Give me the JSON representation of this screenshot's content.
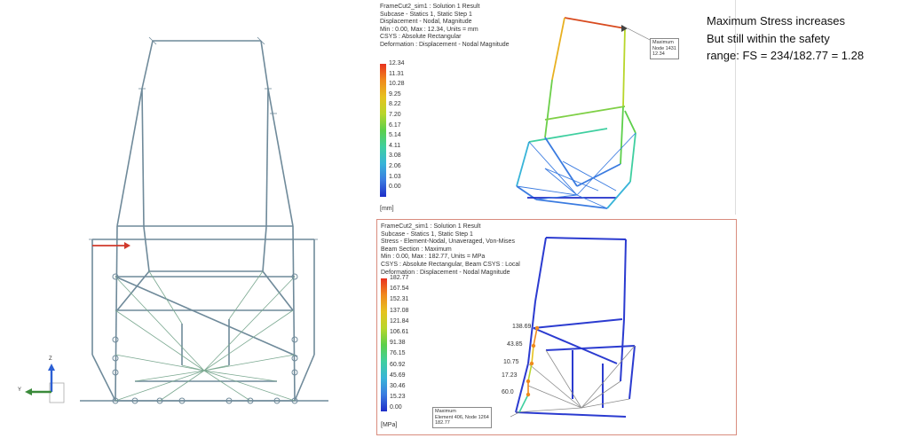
{
  "colors": {
    "frame": "#6f8a9a",
    "mesh_green": "#7aa890",
    "highlight_red": "#d0392b",
    "panel_border": "#d98c7e",
    "triad_z": "#2c5fd4",
    "triad_y": "#3a8a3a"
  },
  "triad": {
    "z_label": "Z",
    "y_label": "Y"
  },
  "top_panel": {
    "header_lines": [
      "FrameCut2_sim1 : Solution 1 Result",
      "Subcase - Statics 1, Static Step 1",
      "Displacement - Nodal, Magnitude",
      "Min : 0.00, Max : 12.34, Units = mm",
      "CSYS : Absolute Rectangular",
      "Deformation : Displacement - Nodal Magnitude"
    ],
    "legend_values": [
      "12.34",
      "11.31",
      "10.28",
      "9.25",
      "8.22",
      "7.20",
      "6.17",
      "5.14",
      "4.11",
      "3.08",
      "2.06",
      "1.03",
      "0.00"
    ],
    "unit": "[mm]",
    "callout": [
      "Maximum",
      "Node 1431",
      "12.34"
    ]
  },
  "bottom_panel": {
    "header_lines": [
      "FrameCut2_sim1 : Solution 1 Result",
      "Subcase - Statics 1, Static Step 1",
      "Stress - Element-Nodal, Unaveraged, Von-Mises",
      "Beam Section : Maximum",
      "Min : 0.00, Max : 182.77, Units = MPa",
      "CSYS : Absolute Rectangular, Beam CSYS : Local",
      "Deformation : Displacement - Nodal Magnitude"
    ],
    "legend_values": [
      "182.77",
      "167.54",
      "152.31",
      "137.08",
      "121.84",
      "106.61",
      "91.38",
      "76.15",
      "60.92",
      "45.69",
      "30.46",
      "15.23",
      "0.00"
    ],
    "unit": "[MPa]",
    "point_labels": [
      "138.69",
      "43.85",
      "10.75",
      "17.23",
      "60.0"
    ],
    "callout": [
      "Maximum",
      "Element 406, Node 1264",
      "182.77"
    ]
  },
  "note_lines": [
    "Maximum Stress increases",
    "But still within the safety",
    "range: FS = 234/182.77 = 1.28"
  ]
}
